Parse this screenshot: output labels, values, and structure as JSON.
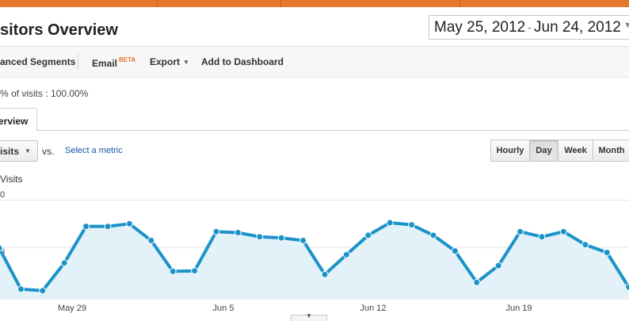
{
  "header": {
    "title": "sitors Overview",
    "date_start": "May 25, 2012",
    "date_separator": "-",
    "date_end": "Jun 24, 2012"
  },
  "toolbar": {
    "segments_label": "anced Segments",
    "email_label": "Email",
    "email_badge": "BETA",
    "export_label": "Export",
    "dashboard_label": "Add to Dashboard"
  },
  "segment_summary": "% of visits : 100.00%",
  "tabs": [
    {
      "label": "erview"
    }
  ],
  "controls": {
    "metric_selected": "isits",
    "vs_label": "vs.",
    "select_metric_label": "Select a metric",
    "range_buttons": [
      "Hourly",
      "Day",
      "Week",
      "Month"
    ],
    "range_active": "Day"
  },
  "colors": {
    "accent_orange": "#e5782b",
    "line_blue": "#1b93c9",
    "fill_blue": "#e3f1f8",
    "link_blue": "#1a57a8"
  },
  "chart_data": {
    "type": "area",
    "series_label": "Visits",
    "ytick_labels": [
      "0",
      "0"
    ],
    "x_tick_labels": [
      "May 29",
      "Jun 5",
      "Jun 12",
      "Jun 19"
    ],
    "x": [
      "May 25",
      "May 26",
      "May 27",
      "May 28",
      "May 29",
      "May 30",
      "May 31",
      "Jun 1",
      "Jun 2",
      "Jun 3",
      "Jun 4",
      "Jun 5",
      "Jun 6",
      "Jun 7",
      "Jun 8",
      "Jun 9",
      "Jun 10",
      "Jun 11",
      "Jun 12",
      "Jun 13",
      "Jun 14",
      "Jun 15",
      "Jun 16",
      "Jun 17",
      "Jun 18",
      "Jun 19",
      "Jun 20",
      "Jun 21",
      "Jun 22",
      "Jun 23",
      "Jun 24"
    ],
    "series": [
      {
        "values": [
          0.985,
          0.2,
          0.17,
          0.7,
          1.4,
          1.4,
          1.45,
          1.13,
          0.54,
          0.55,
          1.3,
          1.28,
          1.2,
          1.18,
          1.13,
          0.48,
          0.86,
          1.23,
          1.47,
          1.43,
          1.23,
          0.93,
          0.33,
          0.65,
          1.3,
          1.2,
          1.3,
          1.05,
          0.9,
          0.24,
          0.25
        ]
      }
    ],
    "ylim": [
      0,
      2
    ],
    "grid": true
  }
}
